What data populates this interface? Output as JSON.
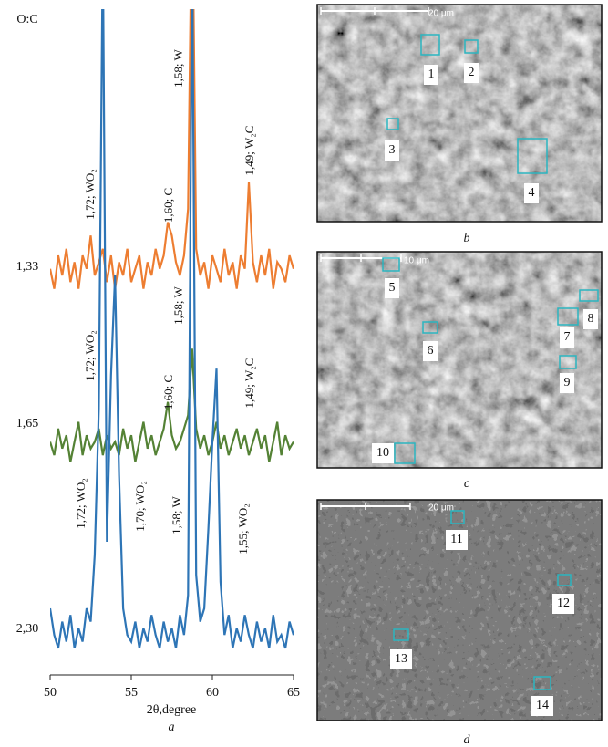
{
  "chart_data": {
    "type": "line",
    "y_label": "O:C",
    "x_label": "2θ,degree",
    "panel_letter": "a",
    "x": [
      50,
      50.25,
      50.5,
      50.75,
      51,
      51.25,
      51.5,
      51.75,
      52,
      52.25,
      52.5,
      52.75,
      53,
      53.25,
      53.5,
      53.75,
      54,
      54.25,
      54.5,
      54.75,
      55,
      55.25,
      55.5,
      55.75,
      56,
      56.25,
      56.5,
      56.75,
      57,
      57.25,
      57.5,
      57.75,
      58,
      58.25,
      58.5,
      58.75,
      59,
      59.25,
      59.5,
      59.75,
      60,
      60.25,
      60.5,
      60.75,
      61,
      61.25,
      61.5,
      61.75,
      62,
      62.25,
      62.5,
      62.75,
      63,
      63.25,
      63.5,
      63.75,
      64,
      64.25,
      64.5,
      64.75,
      65
    ],
    "xlim": [
      50,
      65
    ],
    "xticks": [
      50,
      55,
      60,
      65
    ],
    "ylim": [
      0,
      100
    ],
    "series": [
      {
        "name": "1,33",
        "color": "#ed7d31",
        "values": [
          61,
          58,
          63,
          60,
          64,
          59,
          62,
          58,
          63,
          61,
          66,
          60,
          62,
          64,
          59,
          63,
          58,
          62,
          60,
          64,
          59,
          61,
          63,
          58,
          62,
          60,
          64,
          61,
          63,
          68,
          66,
          62,
          60,
          63,
          70,
          120,
          64,
          60,
          62,
          58,
          63,
          61,
          59,
          64,
          60,
          62,
          58,
          63,
          61,
          74,
          62,
          59,
          63,
          60,
          64,
          58,
          62,
          61,
          59,
          63,
          61
        ],
        "annotations": [
          "1,72; WO₂",
          "1,60; C",
          "1,58; W",
          "1,49; W₂C"
        ]
      },
      {
        "name": "1,65",
        "color": "#548235",
        "values": [
          35,
          33,
          37,
          34,
          36,
          32,
          35,
          38,
          33,
          36,
          34,
          35,
          37,
          33,
          36,
          34,
          35,
          33,
          37,
          34,
          36,
          32,
          35,
          38,
          34,
          36,
          33,
          35,
          37,
          41,
          36,
          34,
          35,
          37,
          39,
          49,
          37,
          34,
          36,
          33,
          35,
          38,
          34,
          36,
          33,
          35,
          37,
          34,
          36,
          33,
          35,
          37,
          34,
          36,
          32,
          35,
          38,
          33,
          36,
          34,
          35
        ],
        "annotations": [
          "1,72; WO₂",
          "1,58; W",
          "1,60; C",
          "1,49; W₂C"
        ]
      },
      {
        "name": "2,30",
        "color": "#2e75b6",
        "values": [
          10,
          6,
          4,
          8,
          5,
          9,
          4,
          7,
          5,
          10,
          8,
          18,
          40,
          110,
          20,
          45,
          60,
          30,
          10,
          6,
          5,
          8,
          4,
          7,
          5,
          9,
          6,
          4,
          8,
          5,
          7,
          4,
          9,
          6,
          12,
          110,
          15,
          8,
          10,
          22,
          35,
          46,
          14,
          6,
          9,
          4,
          7,
          5,
          9,
          6,
          4,
          8,
          5,
          7,
          4,
          9,
          5,
          6,
          4,
          8,
          6
        ],
        "annotations": [
          "1,72; WO₂",
          "1,70; WO₂",
          "1,58; W",
          "1,55; WO₂"
        ]
      }
    ]
  },
  "panels": [
    {
      "letter": "b",
      "scale_bar": "20 μm",
      "regions": [
        "1",
        "2",
        "3",
        "4"
      ]
    },
    {
      "letter": "c",
      "scale_bar": "10 μm",
      "regions": [
        "5",
        "6",
        "7",
        "8",
        "9",
        "10"
      ]
    },
    {
      "letter": "d",
      "scale_bar": "20 μm",
      "regions": [
        "11",
        "12",
        "13",
        "14"
      ]
    }
  ]
}
